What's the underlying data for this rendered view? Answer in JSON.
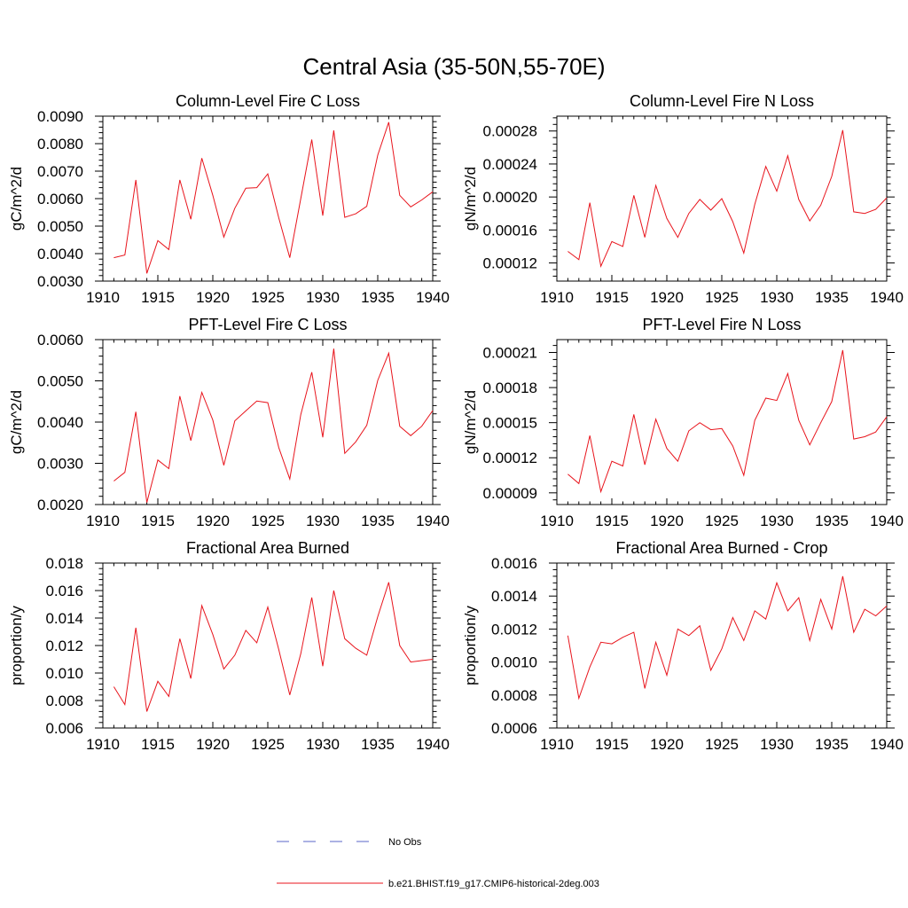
{
  "figure": {
    "title": "Central Asia (35-50N,55-70E)"
  },
  "colors": {
    "model_line": "#e8141c",
    "obs_line": "#5a64c8",
    "axis": "#000000"
  },
  "legend": {
    "obs_label": "No Obs",
    "model_label": "b.e21.BHIST.f19_g17.CMIP6-historical-2deg.003"
  },
  "chart_data": [
    {
      "type": "line",
      "title": "Column-Level Fire C Loss",
      "ylabel": "gC/m^2/d",
      "xlim": [
        1910,
        1940
      ],
      "xticks": [
        1910,
        1915,
        1920,
        1925,
        1930,
        1935,
        1940
      ],
      "xtick_labels": [
        "1910",
        "1915",
        "1920",
        "1925",
        "1930",
        "1935",
        "1940"
      ],
      "ylim": [
        0.003,
        0.009
      ],
      "yticks": [
        0.003,
        0.004,
        0.005,
        0.006,
        0.007,
        0.008,
        0.009
      ],
      "ytick_labels": [
        "0.0030",
        "0.0040",
        "0.0050",
        "0.0060",
        "0.0070",
        "0.0080",
        "0.0090"
      ],
      "series": [
        {
          "x": [
            1911,
            1912,
            1913,
            1914,
            1915,
            1916,
            1917,
            1918,
            1919,
            1920,
            1921,
            1922,
            1923,
            1924,
            1925,
            1926,
            1927,
            1928,
            1929,
            1930,
            1931,
            1932,
            1933,
            1934,
            1935,
            1936,
            1937,
            1938,
            1939,
            1940
          ],
          "values": [
            0.00385,
            0.00395,
            0.00668,
            0.00328,
            0.00447,
            0.00415,
            0.00668,
            0.00525,
            0.00747,
            0.00612,
            0.0046,
            0.00565,
            0.00638,
            0.0064,
            0.0069,
            0.0053,
            0.00385,
            0.006,
            0.00815,
            0.00538,
            0.00848,
            0.00532,
            0.00545,
            0.00572,
            0.00758,
            0.00878,
            0.00612,
            0.0057,
            0.00595,
            0.00625
          ]
        }
      ]
    },
    {
      "type": "line",
      "title": "Column-Level Fire N Loss",
      "ylabel": "gN/m^2/d",
      "xlim": [
        1910,
        1940
      ],
      "xticks": [
        1910,
        1915,
        1920,
        1925,
        1930,
        1935,
        1940
      ],
      "xtick_labels": [
        "1910",
        "1915",
        "1920",
        "1925",
        "1930",
        "1935",
        "1940"
      ],
      "ylim": [
        9.8e-05,
        0.000298
      ],
      "yticks": [
        0.00012,
        0.00016,
        0.0002,
        0.00024,
        0.00028
      ],
      "ytick_labels": [
        "0.00012",
        "0.00016",
        "0.00020",
        "0.00024",
        "0.00028"
      ],
      "series": [
        {
          "x": [
            1911,
            1912,
            1913,
            1914,
            1915,
            1916,
            1917,
            1918,
            1919,
            1920,
            1921,
            1922,
            1923,
            1924,
            1925,
            1926,
            1927,
            1928,
            1929,
            1930,
            1931,
            1932,
            1933,
            1934,
            1935,
            1936,
            1937,
            1938,
            1939,
            1940
          ],
          "values": [
            0.000134,
            0.000124,
            0.000193,
            0.000116,
            0.000146,
            0.00014,
            0.000202,
            0.000151,
            0.000214,
            0.000174,
            0.000151,
            0.00018,
            0.000197,
            0.000184,
            0.000198,
            0.00017,
            0.000132,
            0.000191,
            0.000237,
            0.000207,
            0.00025,
            0.000197,
            0.000171,
            0.00019,
            0.000225,
            0.000281,
            0.000182,
            0.00018,
            0.000185,
            0.000199
          ]
        }
      ]
    },
    {
      "type": "line",
      "title": "PFT-Level Fire C Loss",
      "ylabel": "gC/m^2/d",
      "xlim": [
        1910,
        1940
      ],
      "xticks": [
        1910,
        1915,
        1920,
        1925,
        1930,
        1935,
        1940
      ],
      "xtick_labels": [
        "1910",
        "1915",
        "1920",
        "1925",
        "1930",
        "1935",
        "1940"
      ],
      "ylim": [
        0.002,
        0.006
      ],
      "yticks": [
        0.002,
        0.003,
        0.004,
        0.005,
        0.006
      ],
      "ytick_labels": [
        "0.0020",
        "0.0030",
        "0.0040",
        "0.0050",
        "0.0060"
      ],
      "series": [
        {
          "x": [
            1911,
            1912,
            1913,
            1914,
            1915,
            1916,
            1917,
            1918,
            1919,
            1920,
            1921,
            1922,
            1923,
            1924,
            1925,
            1926,
            1927,
            1928,
            1929,
            1930,
            1931,
            1932,
            1933,
            1934,
            1935,
            1936,
            1937,
            1938,
            1939,
            1940
          ],
          "values": [
            0.00257,
            0.00278,
            0.00425,
            0.00205,
            0.00308,
            0.00287,
            0.00463,
            0.00355,
            0.00472,
            0.00405,
            0.00295,
            0.00403,
            0.00427,
            0.00451,
            0.00447,
            0.00338,
            0.00262,
            0.00418,
            0.00521,
            0.00363,
            0.00578,
            0.00324,
            0.00352,
            0.00392,
            0.00501,
            0.00567,
            0.0039,
            0.00367,
            0.0039,
            0.00428
          ]
        }
      ]
    },
    {
      "type": "line",
      "title": "PFT-Level Fire N Loss",
      "ylabel": "gN/m^2/d",
      "xlim": [
        1910,
        1940
      ],
      "xticks": [
        1910,
        1915,
        1920,
        1925,
        1930,
        1935,
        1940
      ],
      "xtick_labels": [
        "1910",
        "1915",
        "1920",
        "1925",
        "1930",
        "1935",
        "1940"
      ],
      "ylim": [
        8e-05,
        0.000221
      ],
      "yticks": [
        9e-05,
        0.00012,
        0.00015,
        0.00018,
        0.00021
      ],
      "ytick_labels": [
        "0.00009",
        "0.00012",
        "0.00015",
        "0.00018",
        "0.00021"
      ],
      "series": [
        {
          "x": [
            1911,
            1912,
            1913,
            1914,
            1915,
            1916,
            1917,
            1918,
            1919,
            1920,
            1921,
            1922,
            1923,
            1924,
            1925,
            1926,
            1927,
            1928,
            1929,
            1930,
            1931,
            1932,
            1933,
            1934,
            1935,
            1936,
            1937,
            1938,
            1939,
            1940
          ],
          "values": [
            0.000106,
            9.8e-05,
            0.000139,
            9.1e-05,
            0.000117,
            0.000113,
            0.000157,
            0.000114,
            0.000153,
            0.000128,
            0.000117,
            0.000143,
            0.00015,
            0.000144,
            0.000145,
            0.00013,
            0.000105,
            0.000152,
            0.000171,
            0.000169,
            0.000192,
            0.000152,
            0.000131,
            0.00015,
            0.000168,
            0.000212,
            0.000136,
            0.000138,
            0.000142,
            0.000155
          ]
        }
      ]
    },
    {
      "type": "line",
      "title": "Fractional Area Burned",
      "ylabel": "proportion/y",
      "xlim": [
        1910,
        1940
      ],
      "xticks": [
        1910,
        1915,
        1920,
        1925,
        1930,
        1935,
        1940
      ],
      "xtick_labels": [
        "1910",
        "1915",
        "1920",
        "1925",
        "1930",
        "1935",
        "1940"
      ],
      "ylim": [
        0.006,
        0.018
      ],
      "yticks": [
        0.006,
        0.008,
        0.01,
        0.012,
        0.014,
        0.016,
        0.018
      ],
      "ytick_labels": [
        "0.006",
        "0.008",
        "0.010",
        "0.012",
        "0.014",
        "0.016",
        "0.018"
      ],
      "series": [
        {
          "x": [
            1911,
            1912,
            1913,
            1914,
            1915,
            1916,
            1917,
            1918,
            1919,
            1920,
            1921,
            1922,
            1923,
            1924,
            1925,
            1926,
            1927,
            1928,
            1929,
            1930,
            1931,
            1932,
            1933,
            1934,
            1935,
            1936,
            1937,
            1938,
            1939,
            1940
          ],
          "values": [
            0.009,
            0.0077,
            0.0133,
            0.0072,
            0.0094,
            0.0083,
            0.0125,
            0.0096,
            0.0149,
            0.0128,
            0.0103,
            0.0113,
            0.0131,
            0.0122,
            0.0148,
            0.0117,
            0.0084,
            0.0114,
            0.0155,
            0.0105,
            0.016,
            0.0125,
            0.0118,
            0.0113,
            0.0141,
            0.0166,
            0.012,
            0.0108,
            0.0109,
            0.011
          ]
        }
      ]
    },
    {
      "type": "line",
      "title": "Fractional Area Burned - Crop",
      "ylabel": "proportion/y",
      "xlim": [
        1910,
        1940
      ],
      "xticks": [
        1910,
        1915,
        1920,
        1925,
        1930,
        1935,
        1940
      ],
      "xtick_labels": [
        "1910",
        "1915",
        "1920",
        "1925",
        "1930",
        "1935",
        "1940"
      ],
      "ylim": [
        0.0006,
        0.0016
      ],
      "yticks": [
        0.0006,
        0.0008,
        0.001,
        0.0012,
        0.0014,
        0.0016
      ],
      "ytick_labels": [
        "0.0006",
        "0.0008",
        "0.0010",
        "0.0012",
        "0.0014",
        "0.0016"
      ],
      "series": [
        {
          "x": [
            1911,
            1912,
            1913,
            1914,
            1915,
            1916,
            1917,
            1918,
            1919,
            1920,
            1921,
            1922,
            1923,
            1924,
            1925,
            1926,
            1927,
            1928,
            1929,
            1930,
            1931,
            1932,
            1933,
            1934,
            1935,
            1936,
            1937,
            1938,
            1939,
            1940
          ],
          "values": [
            0.00116,
            0.00078,
            0.00097,
            0.00112,
            0.00111,
            0.00115,
            0.00118,
            0.00084,
            0.00112,
            0.00092,
            0.0012,
            0.00116,
            0.00122,
            0.00095,
            0.00108,
            0.00127,
            0.00113,
            0.00131,
            0.00126,
            0.00148,
            0.00131,
            0.00139,
            0.00113,
            0.00138,
            0.0012,
            0.00152,
            0.00118,
            0.00132,
            0.00128,
            0.00134
          ]
        }
      ]
    }
  ]
}
